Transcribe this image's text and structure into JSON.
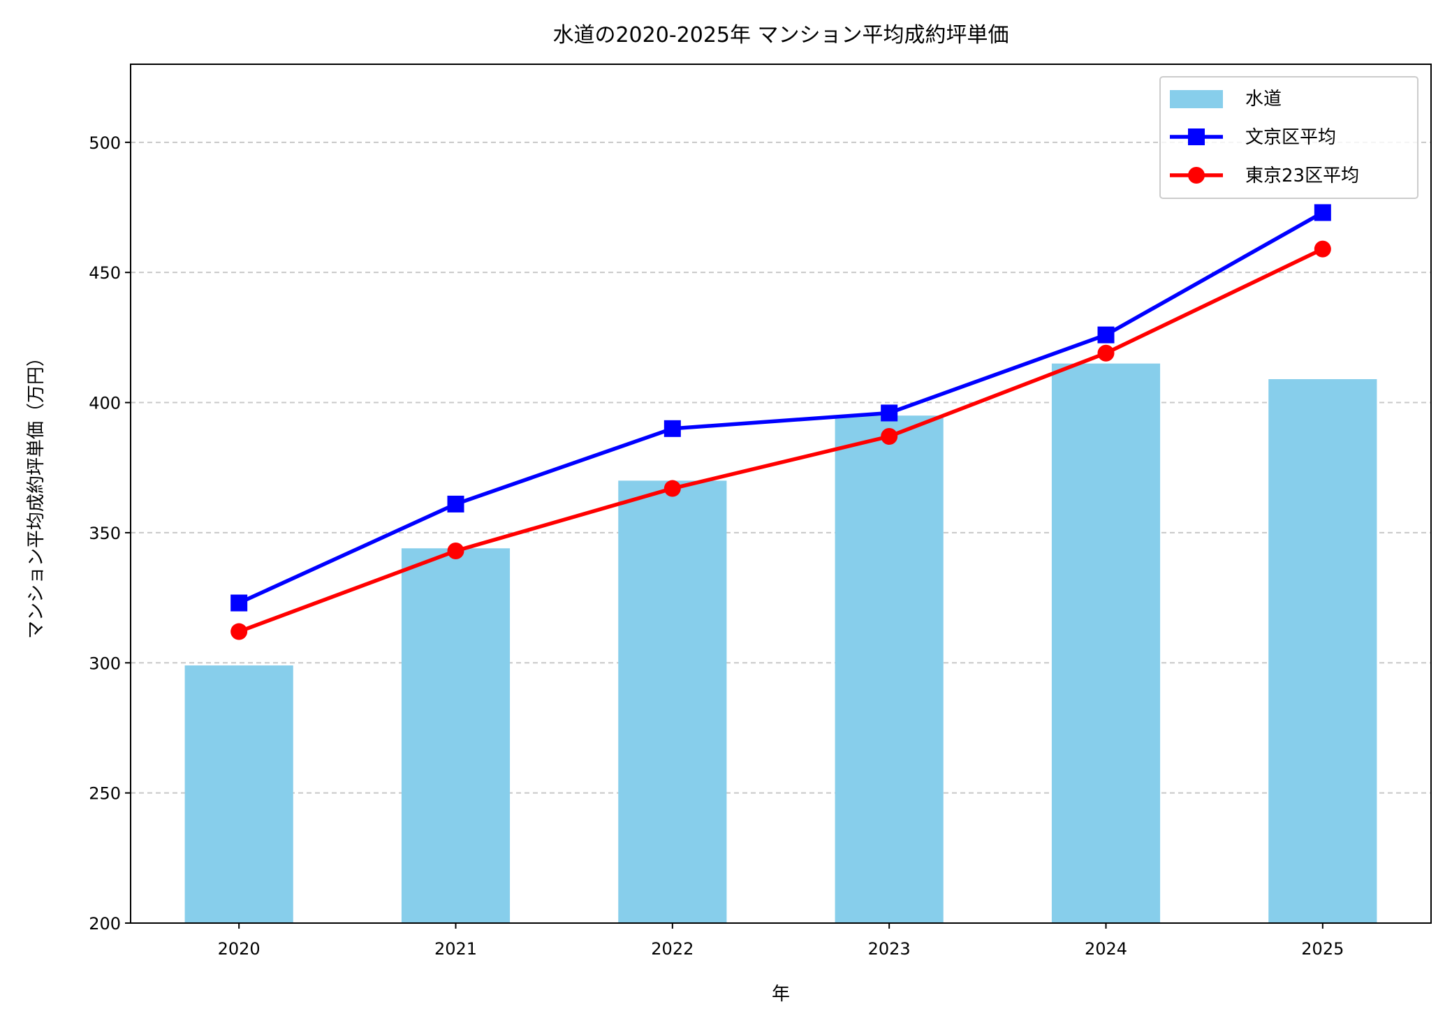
{
  "chart_data": {
    "type": "bar+line",
    "title": "水道の2020-2025年 マンション平均成約坪単価",
    "xlabel": "年",
    "ylabel": "マンション平均成約坪単価（万円）",
    "categories": [
      "2020",
      "2021",
      "2022",
      "2023",
      "2024",
      "2025"
    ],
    "ylim": [
      200,
      530
    ],
    "yticks": [
      200,
      250,
      300,
      350,
      400,
      450,
      500
    ],
    "grid": "y-dashed",
    "legend_position": "top-right",
    "series": [
      {
        "name": "水道",
        "type": "bar",
        "color": "#87CEEB",
        "values": [
          299,
          344,
          370,
          395,
          415,
          409
        ]
      },
      {
        "name": "文京区平均",
        "type": "line",
        "marker": "square",
        "color": "#0000FF",
        "values": [
          323,
          361,
          390,
          396,
          426,
          473
        ]
      },
      {
        "name": "東京23区平均",
        "type": "line",
        "marker": "circle",
        "color": "#FF0000",
        "values": [
          312,
          343,
          367,
          387,
          419,
          459
        ]
      }
    ]
  }
}
